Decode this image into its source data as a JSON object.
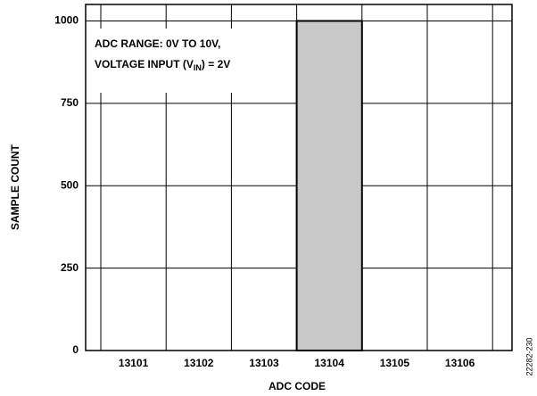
{
  "chart_data": {
    "type": "bar",
    "categories": [
      "13101",
      "13102",
      "13103",
      "13104",
      "13105",
      "13106"
    ],
    "values": [
      0,
      0,
      0,
      1000,
      0,
      0
    ],
    "color": "#c8c8c8",
    "ylim": [
      0,
      1050
    ],
    "yticks": [
      0,
      250,
      500,
      750,
      1000
    ],
    "grid": true,
    "x_label": "ADC CODE",
    "y_label": "SAMPLE COUNT",
    "annotation": {
      "line1": "ADC RANGE: 0V TO 10V,",
      "line2_start": "VOLTAGE INPUT (V",
      "line2_sub": "IN",
      "line2_end": ") = 2V"
    },
    "figure_id": "22282-230"
  }
}
